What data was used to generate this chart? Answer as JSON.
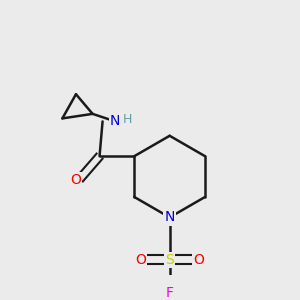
{
  "bg_color": "#ebebeb",
  "bond_color": "#1a1a1a",
  "colors": {
    "N": "#0000dd",
    "O": "#ff0000",
    "S": "#cccc00",
    "F": "#ee00ee",
    "H": "#5f9ea0",
    "C": "#1a1a1a"
  },
  "figsize": [
    3.0,
    3.0
  ],
  "dpi": 100
}
